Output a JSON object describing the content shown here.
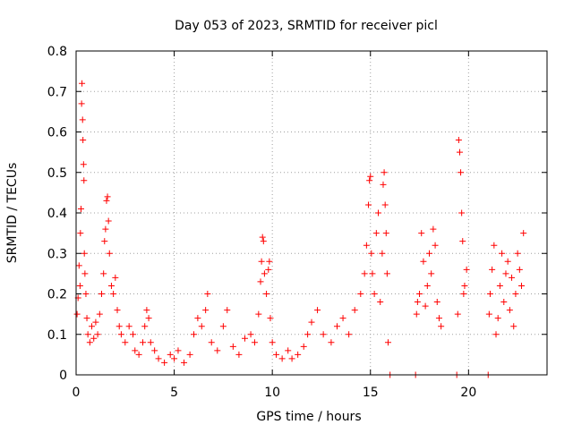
{
  "chart_data": {
    "type": "scatter",
    "title": "Day 053 of 2023, SRMTID for receiver picl",
    "xlabel": "GPS time / hours",
    "ylabel": "SRMTID / TECUs",
    "xlim": [
      0,
      24
    ],
    "ylim": [
      0,
      0.8
    ],
    "x_ticks": [
      0,
      5,
      10,
      15,
      20
    ],
    "y_ticks": [
      0,
      0.1,
      0.2,
      0.3,
      0.4,
      0.5,
      0.6,
      0.7,
      0.8
    ],
    "x_tick_labels": [
      "0",
      "5",
      "10",
      "15",
      "20"
    ],
    "y_tick_labels": [
      "0",
      "0.1",
      "0.2",
      "0.3",
      "0.4",
      "0.5",
      "0.6",
      "0.7",
      "0.8"
    ],
    "grid": true,
    "marker": "+",
    "color": "#ff0000",
    "series": [
      {
        "name": "SRMTID",
        "points": [
          [
            0.05,
            0.15
          ],
          [
            0.1,
            0.19
          ],
          [
            0.15,
            0.27
          ],
          [
            0.2,
            0.22
          ],
          [
            0.22,
            0.35
          ],
          [
            0.25,
            0.41
          ],
          [
            0.28,
            0.67
          ],
          [
            0.3,
            0.72
          ],
          [
            0.33,
            0.63
          ],
          [
            0.35,
            0.58
          ],
          [
            0.38,
            0.52
          ],
          [
            0.4,
            0.48
          ],
          [
            0.42,
            0.3
          ],
          [
            0.45,
            0.25
          ],
          [
            0.5,
            0.2
          ],
          [
            0.55,
            0.14
          ],
          [
            0.6,
            0.1
          ],
          [
            0.7,
            0.08
          ],
          [
            0.8,
            0.12
          ],
          [
            0.9,
            0.09
          ],
          [
            1.0,
            0.13
          ],
          [
            1.1,
            0.1
          ],
          [
            1.2,
            0.15
          ],
          [
            1.3,
            0.2
          ],
          [
            1.4,
            0.25
          ],
          [
            1.45,
            0.33
          ],
          [
            1.5,
            0.36
          ],
          [
            1.55,
            0.43
          ],
          [
            1.6,
            0.44
          ],
          [
            1.65,
            0.38
          ],
          [
            1.7,
            0.3
          ],
          [
            1.8,
            0.22
          ],
          [
            1.9,
            0.2
          ],
          [
            2.0,
            0.24
          ],
          [
            2.1,
            0.16
          ],
          [
            2.2,
            0.12
          ],
          [
            2.3,
            0.1
          ],
          [
            2.5,
            0.08
          ],
          [
            2.7,
            0.12
          ],
          [
            2.9,
            0.1
          ],
          [
            3.0,
            0.06
          ],
          [
            3.2,
            0.05
          ],
          [
            3.4,
            0.08
          ],
          [
            3.5,
            0.12
          ],
          [
            3.6,
            0.16
          ],
          [
            3.7,
            0.14
          ],
          [
            3.8,
            0.08
          ],
          [
            4.0,
            0.06
          ],
          [
            4.2,
            0.04
          ],
          [
            4.5,
            0.03
          ],
          [
            4.8,
            0.05
          ],
          [
            5.0,
            0.04
          ],
          [
            5.2,
            0.06
          ],
          [
            5.5,
            0.03
          ],
          [
            5.8,
            0.05
          ],
          [
            6.0,
            0.1
          ],
          [
            6.2,
            0.14
          ],
          [
            6.4,
            0.12
          ],
          [
            6.6,
            0.16
          ],
          [
            6.7,
            0.2
          ],
          [
            6.9,
            0.08
          ],
          [
            7.2,
            0.06
          ],
          [
            7.5,
            0.12
          ],
          [
            7.7,
            0.16
          ],
          [
            8.0,
            0.07
          ],
          [
            8.3,
            0.05
          ],
          [
            8.6,
            0.09
          ],
          [
            8.9,
            0.1
          ],
          [
            9.1,
            0.08
          ],
          [
            9.3,
            0.15
          ],
          [
            9.4,
            0.23
          ],
          [
            9.45,
            0.28
          ],
          [
            9.5,
            0.34
          ],
          [
            9.55,
            0.33
          ],
          [
            9.6,
            0.25
          ],
          [
            9.7,
            0.2
          ],
          [
            9.8,
            0.26
          ],
          [
            9.85,
            0.28
          ],
          [
            9.9,
            0.14
          ],
          [
            10.0,
            0.08
          ],
          [
            10.2,
            0.05
          ],
          [
            10.5,
            0.04
          ],
          [
            10.8,
            0.06
          ],
          [
            11.0,
            0.04
          ],
          [
            11.3,
            0.05
          ],
          [
            11.6,
            0.07
          ],
          [
            11.8,
            0.1
          ],
          [
            12.0,
            0.13
          ],
          [
            12.3,
            0.16
          ],
          [
            12.6,
            0.1
          ],
          [
            13.0,
            0.08
          ],
          [
            13.3,
            0.12
          ],
          [
            13.6,
            0.14
          ],
          [
            13.9,
            0.1
          ],
          [
            14.2,
            0.16
          ],
          [
            14.5,
            0.2
          ],
          [
            14.7,
            0.25
          ],
          [
            14.8,
            0.32
          ],
          [
            14.9,
            0.42
          ],
          [
            14.95,
            0.48
          ],
          [
            15.0,
            0.49
          ],
          [
            15.05,
            0.3
          ],
          [
            15.1,
            0.25
          ],
          [
            15.2,
            0.2
          ],
          [
            15.3,
            0.35
          ],
          [
            15.4,
            0.4
          ],
          [
            15.5,
            0.18
          ],
          [
            15.6,
            0.3
          ],
          [
            15.65,
            0.47
          ],
          [
            15.7,
            0.5
          ],
          [
            15.75,
            0.42
          ],
          [
            15.8,
            0.35
          ],
          [
            15.85,
            0.25
          ],
          [
            15.9,
            0.08
          ],
          [
            16.0,
            0.0
          ],
          [
            17.3,
            0.0
          ],
          [
            17.35,
            0.15
          ],
          [
            17.4,
            0.18
          ],
          [
            17.5,
            0.2
          ],
          [
            17.6,
            0.35
          ],
          [
            17.7,
            0.28
          ],
          [
            17.8,
            0.17
          ],
          [
            17.9,
            0.22
          ],
          [
            18.0,
            0.3
          ],
          [
            18.1,
            0.25
          ],
          [
            18.2,
            0.36
          ],
          [
            18.3,
            0.32
          ],
          [
            18.4,
            0.18
          ],
          [
            18.5,
            0.14
          ],
          [
            18.6,
            0.12
          ],
          [
            19.4,
            0.0
          ],
          [
            19.45,
            0.15
          ],
          [
            19.5,
            0.58
          ],
          [
            19.55,
            0.55
          ],
          [
            19.6,
            0.5
          ],
          [
            19.65,
            0.4
          ],
          [
            19.7,
            0.33
          ],
          [
            19.75,
            0.2
          ],
          [
            19.8,
            0.22
          ],
          [
            19.9,
            0.26
          ],
          [
            21.0,
            0.0
          ],
          [
            21.05,
            0.15
          ],
          [
            21.1,
            0.2
          ],
          [
            21.2,
            0.26
          ],
          [
            21.3,
            0.32
          ],
          [
            21.4,
            0.1
          ],
          [
            21.5,
            0.14
          ],
          [
            21.6,
            0.22
          ],
          [
            21.7,
            0.3
          ],
          [
            21.8,
            0.18
          ],
          [
            21.9,
            0.25
          ],
          [
            22.0,
            0.28
          ],
          [
            22.1,
            0.16
          ],
          [
            22.2,
            0.24
          ],
          [
            22.3,
            0.12
          ],
          [
            22.4,
            0.2
          ],
          [
            22.5,
            0.3
          ],
          [
            22.6,
            0.26
          ],
          [
            22.7,
            0.22
          ],
          [
            22.8,
            0.35
          ]
        ]
      }
    ]
  }
}
